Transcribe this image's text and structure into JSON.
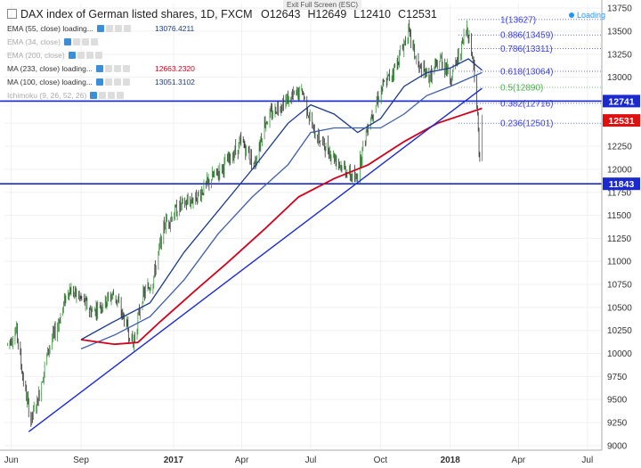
{
  "header": {
    "title": "DAX index of German listed shares, 1D, FXCM",
    "ohlc": {
      "o": "O12643",
      "h": "H12649",
      "l": "L12410",
      "c": "C12531"
    },
    "exit_fullscreen": "Exit Full Screen (ESC)",
    "loading": "Loading"
  },
  "indicators": [
    {
      "label": "EMA (55, close) loading...",
      "value": "13076.4211",
      "value_color": "#1a3a8a",
      "faded": false
    },
    {
      "label": "EMA (34, close)",
      "value": "",
      "value_color": "",
      "faded": true
    },
    {
      "label": "EMA (200, close)",
      "value": "",
      "value_color": "",
      "faded": true
    },
    {
      "label": "MA (233, close) loading...",
      "value": "12663.2320",
      "value_color": "#d0021b",
      "faded": false
    },
    {
      "label": "MA (100, close) loading...",
      "value": "13051.3102",
      "value_color": "#1a3a8a",
      "faded": false
    },
    {
      "label": "Ichimoku (9, 26, 52, 26)",
      "value": "",
      "value_color": "",
      "faded": true
    }
  ],
  "chart_data": {
    "type": "candlestick",
    "x_ticks": [
      "Jun",
      "Sep",
      "2017",
      "Apr",
      "Jul",
      "Oct",
      "2018",
      "Apr",
      "Jul"
    ],
    "y_ticks": [
      9000,
      9250,
      9500,
      9750,
      10000,
      10250,
      10500,
      10750,
      11000,
      11250,
      11500,
      11750,
      12000,
      12250,
      12500,
      12750,
      13000,
      13250,
      13500,
      13750
    ],
    "ylim": [
      8950,
      13800
    ],
    "price_labels": [
      {
        "value": 12741,
        "text": "12741",
        "color": "#1a2ad0"
      },
      {
        "value": 12531,
        "text": "12531",
        "color": "#e01010"
      },
      {
        "value": 11843,
        "text": "11843",
        "color": "#1a2ad0"
      }
    ],
    "horizontal_lines": [
      12741,
      11843
    ],
    "fibonacci": [
      {
        "level": "1",
        "price": 13627,
        "text": "1(13627)",
        "color": "#3b3fd6"
      },
      {
        "level": "0.886",
        "price": 13459,
        "text": "0.886(13459)",
        "color": "#3b3fd6"
      },
      {
        "level": "0.786",
        "price": 13311,
        "text": "0.786(13311)",
        "color": "#3b3fd6"
      },
      {
        "level": "0.618",
        "price": 13064,
        "text": "0.618(13064)",
        "color": "#3b3fd6"
      },
      {
        "level": "0.5",
        "price": 12890,
        "text": "0.5(12890)",
        "color": "#4caf50"
      },
      {
        "level": "0.382",
        "price": 12716,
        "text": "0.382(12716)",
        "color": "#3b3fd6"
      },
      {
        "level": "0.236",
        "price": 12501,
        "text": "0.236(12501)",
        "color": "#3b3fd6"
      }
    ],
    "trendline": {
      "from": {
        "date": "2016-06-24",
        "price": 9150
      },
      "to": {
        "date": "2018-02-12",
        "price": 12880
      }
    },
    "price_path": [
      [
        "2016-05-27",
        10100
      ],
      [
        "2016-06-08",
        10250
      ],
      [
        "2016-06-17",
        9700
      ],
      [
        "2016-06-27",
        9270
      ],
      [
        "2016-07-06",
        9500
      ],
      [
        "2016-07-20",
        10050
      ],
      [
        "2016-08-01",
        10300
      ],
      [
        "2016-08-15",
        10700
      ],
      [
        "2016-09-01",
        10600
      ],
      [
        "2016-09-15",
        10450
      ],
      [
        "2016-10-01",
        10550
      ],
      [
        "2016-10-15",
        10650
      ],
      [
        "2016-11-09",
        10100
      ],
      [
        "2016-11-20",
        10600
      ],
      [
        "2016-12-05",
        10800
      ],
      [
        "2016-12-20",
        11400
      ],
      [
        "2017-01-10",
        11600
      ],
      [
        "2017-02-01",
        11700
      ],
      [
        "2017-02-20",
        11900
      ],
      [
        "2017-03-15",
        12100
      ],
      [
        "2017-04-01",
        12300
      ],
      [
        "2017-04-18",
        12050
      ],
      [
        "2017-05-01",
        12500
      ],
      [
        "2017-05-20",
        12700
      ],
      [
        "2017-06-10",
        12800
      ],
      [
        "2017-06-20",
        12850
      ],
      [
        "2017-07-05",
        12400
      ],
      [
        "2017-07-20",
        12250
      ],
      [
        "2017-08-10",
        12050
      ],
      [
        "2017-08-29",
        11870
      ],
      [
        "2017-09-15",
        12500
      ],
      [
        "2017-10-01",
        12850
      ],
      [
        "2017-10-20",
        13100
      ],
      [
        "2017-11-07",
        13500
      ],
      [
        "2017-11-20",
        13100
      ],
      [
        "2017-12-05",
        13000
      ],
      [
        "2017-12-20",
        13200
      ],
      [
        "2018-01-02",
        13000
      ],
      [
        "2018-01-15",
        13300
      ],
      [
        "2018-01-23",
        13550
      ],
      [
        "2018-02-01",
        13150
      ],
      [
        "2018-02-05",
        12700
      ],
      [
        "2018-02-09",
        12100
      ],
      [
        "2018-02-12",
        12531
      ]
    ],
    "series": [
      {
        "name": "EMA (55, close)",
        "color": "#1a3a8a",
        "points": [
          [
            "2016-09-01",
            10150
          ],
          [
            "2016-10-15",
            10350
          ],
          [
            "2016-12-01",
            10550
          ],
          [
            "2017-01-15",
            11100
          ],
          [
            "2017-03-01",
            11550
          ],
          [
            "2017-04-15",
            12000
          ],
          [
            "2017-06-01",
            12500
          ],
          [
            "2017-07-01",
            12700
          ],
          [
            "2017-08-01",
            12600
          ],
          [
            "2017-09-01",
            12400
          ],
          [
            "2017-10-01",
            12550
          ],
          [
            "2017-11-01",
            12900
          ],
          [
            "2017-12-01",
            13050
          ],
          [
            "2018-01-01",
            13100
          ],
          [
            "2018-01-25",
            13200
          ],
          [
            "2018-02-12",
            13076
          ]
        ]
      },
      {
        "name": "MA (100, close)",
        "color": "#3d5fa8",
        "points": [
          [
            "2016-09-01",
            10050
          ],
          [
            "2016-10-15",
            10200
          ],
          [
            "2016-12-01",
            10400
          ],
          [
            "2017-01-15",
            10800
          ],
          [
            "2017-03-01",
            11300
          ],
          [
            "2017-04-15",
            11700
          ],
          [
            "2017-06-01",
            12050
          ],
          [
            "2017-07-01",
            12400
          ],
          [
            "2017-08-01",
            12450
          ],
          [
            "2017-09-01",
            12450
          ],
          [
            "2017-10-01",
            12450
          ],
          [
            "2017-11-01",
            12600
          ],
          [
            "2017-12-01",
            12800
          ],
          [
            "2018-01-01",
            12900
          ],
          [
            "2018-02-12",
            13051
          ]
        ]
      },
      {
        "name": "MA (233, close)",
        "color": "#d0021b",
        "points": [
          [
            "2016-09-01",
            10150
          ],
          [
            "2016-10-15",
            10100
          ],
          [
            "2016-11-15",
            10120
          ],
          [
            "2016-12-15",
            10350
          ],
          [
            "2017-02-01",
            10700
          ],
          [
            "2017-03-15",
            11000
          ],
          [
            "2017-05-01",
            11350
          ],
          [
            "2017-06-15",
            11700
          ],
          [
            "2017-08-01",
            11900
          ],
          [
            "2017-09-15",
            12050
          ],
          [
            "2017-11-01",
            12300
          ],
          [
            "2017-12-15",
            12500
          ],
          [
            "2018-02-12",
            12663
          ]
        ]
      }
    ]
  }
}
